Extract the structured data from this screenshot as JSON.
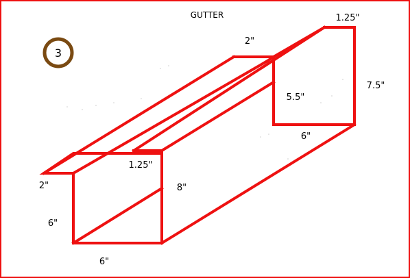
{
  "title": "GUTTER",
  "badge": "3",
  "dimensions": {
    "top_right_lip": "1.25\"",
    "top_inner_width": "2\"",
    "outer_height": "7.5\"",
    "inner_height": "5.5\"",
    "back_bottom_width": "6\"",
    "front_lip": "1.25\"",
    "front_height": "8\"",
    "left_top_width": "2\"",
    "left_height": "6\"",
    "bottom_width": "6\""
  },
  "colors": {
    "line": "#ee1111",
    "border": "#ee1111",
    "badge_ring": "#7a4a12",
    "text": "#000000"
  }
}
